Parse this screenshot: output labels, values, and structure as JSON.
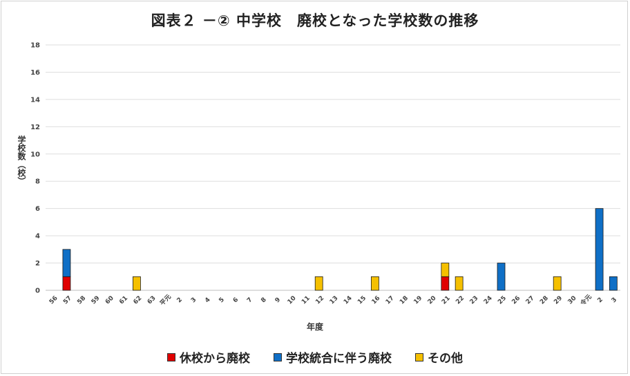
{
  "chart_data": {
    "type": "bar",
    "stacked": true,
    "title": "図表２ －② 中学校　廃校となった学校数の推移",
    "xlabel": "年度",
    "ylabel": "学校数（校）",
    "ylim": [
      0,
      18
    ],
    "yticks": [
      0,
      2,
      4,
      6,
      8,
      10,
      12,
      14,
      16,
      18
    ],
    "grid": true,
    "legend_position": "bottom",
    "categories": [
      "56",
      "57",
      "58",
      "59",
      "60",
      "61",
      "62",
      "63",
      "平元",
      "2",
      "3",
      "4",
      "5",
      "6",
      "7",
      "8",
      "9",
      "10",
      "11",
      "12",
      "13",
      "14",
      "15",
      "16",
      "17",
      "18",
      "19",
      "20",
      "21",
      "22",
      "23",
      "24",
      "25",
      "26",
      "27",
      "28",
      "29",
      "30",
      "令元",
      "2",
      "3"
    ],
    "series": [
      {
        "name": "休校から廃校",
        "color": "#e00000",
        "values": [
          0,
          1,
          0,
          0,
          0,
          0,
          0,
          0,
          0,
          0,
          0,
          0,
          0,
          0,
          0,
          0,
          0,
          0,
          0,
          0,
          0,
          0,
          0,
          0,
          0,
          0,
          0,
          0,
          1,
          0,
          0,
          0,
          0,
          0,
          0,
          0,
          0,
          0,
          0,
          0,
          0
        ]
      },
      {
        "name": "学校統合に伴う廃校",
        "color": "#0f6fc6",
        "values": [
          0,
          2,
          0,
          0,
          0,
          0,
          0,
          0,
          0,
          0,
          0,
          0,
          0,
          0,
          0,
          0,
          0,
          0,
          0,
          0,
          0,
          0,
          0,
          0,
          0,
          0,
          0,
          0,
          0,
          0,
          0,
          0,
          2,
          0,
          0,
          0,
          0,
          0,
          0,
          6,
          1
        ]
      },
      {
        "name": "その他",
        "color": "#f5c000",
        "values": [
          0,
          0,
          0,
          0,
          0,
          0,
          1,
          0,
          0,
          0,
          0,
          0,
          0,
          0,
          0,
          0,
          0,
          0,
          0,
          1,
          0,
          0,
          0,
          1,
          0,
          0,
          0,
          0,
          1,
          1,
          0,
          0,
          0,
          0,
          0,
          0,
          1,
          0,
          0,
          0,
          0
        ]
      }
    ]
  }
}
